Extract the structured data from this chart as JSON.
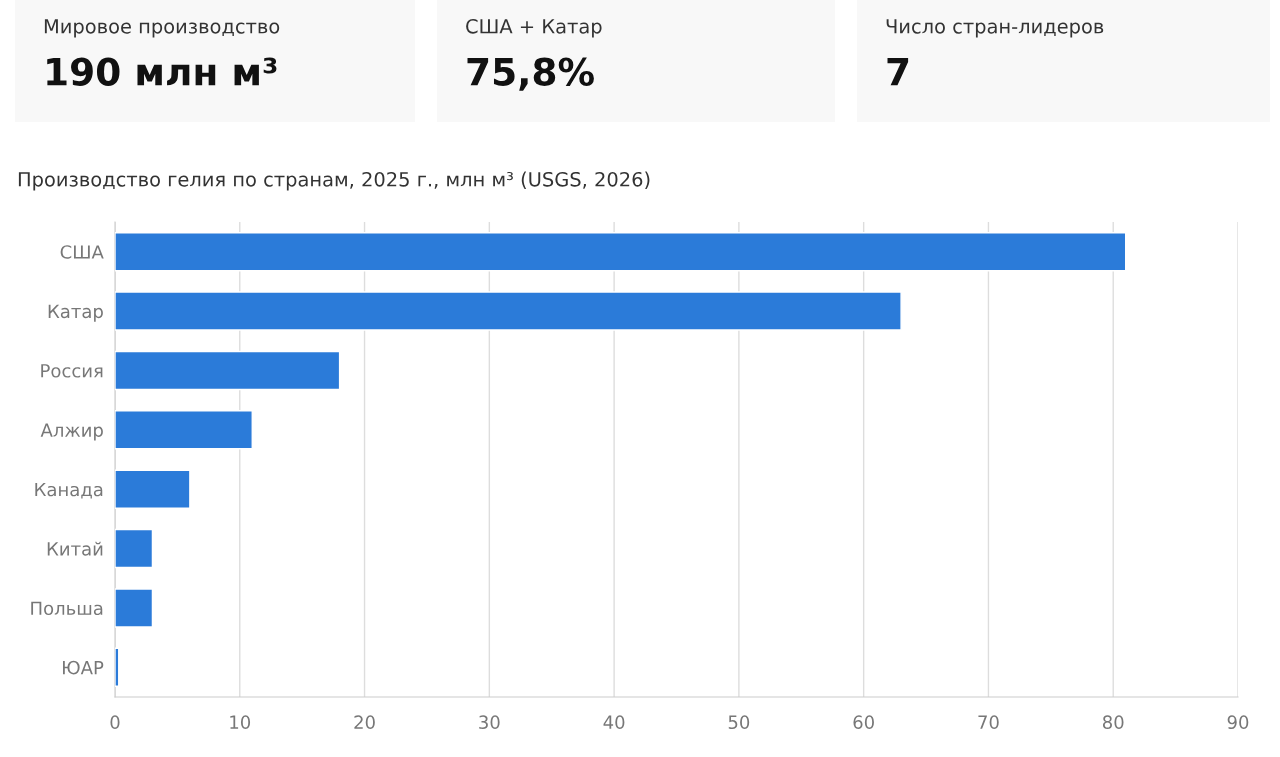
{
  "chart_data": [
    {
      "type": "other",
      "title": "Мировое производство",
      "annotations": [
        "190 млн м³"
      ]
    },
    {
      "type": "other",
      "title": "США + Катар",
      "annotations": [
        "75,8%"
      ]
    },
    {
      "type": "other",
      "title": "Число стран-лидеров",
      "annotations": [
        "7"
      ]
    },
    {
      "type": "bar",
      "orientation": "horizontal",
      "title": "Производство гелия по странам, 2025 г., млн м³ (USGS, 2026)",
      "categories": [
        "США",
        "Катар",
        "Россия",
        "Алжир",
        "Канада",
        "Китай",
        "Польша",
        "ЮАР"
      ],
      "values": [
        81,
        63,
        18,
        11,
        6,
        3,
        3,
        0.3
      ],
      "color": "#2b7bd9",
      "xlim": [
        0,
        90
      ],
      "xticks": [
        0,
        10,
        20,
        30,
        40,
        50,
        60,
        70,
        80,
        90
      ],
      "grid": "x"
    }
  ]
}
